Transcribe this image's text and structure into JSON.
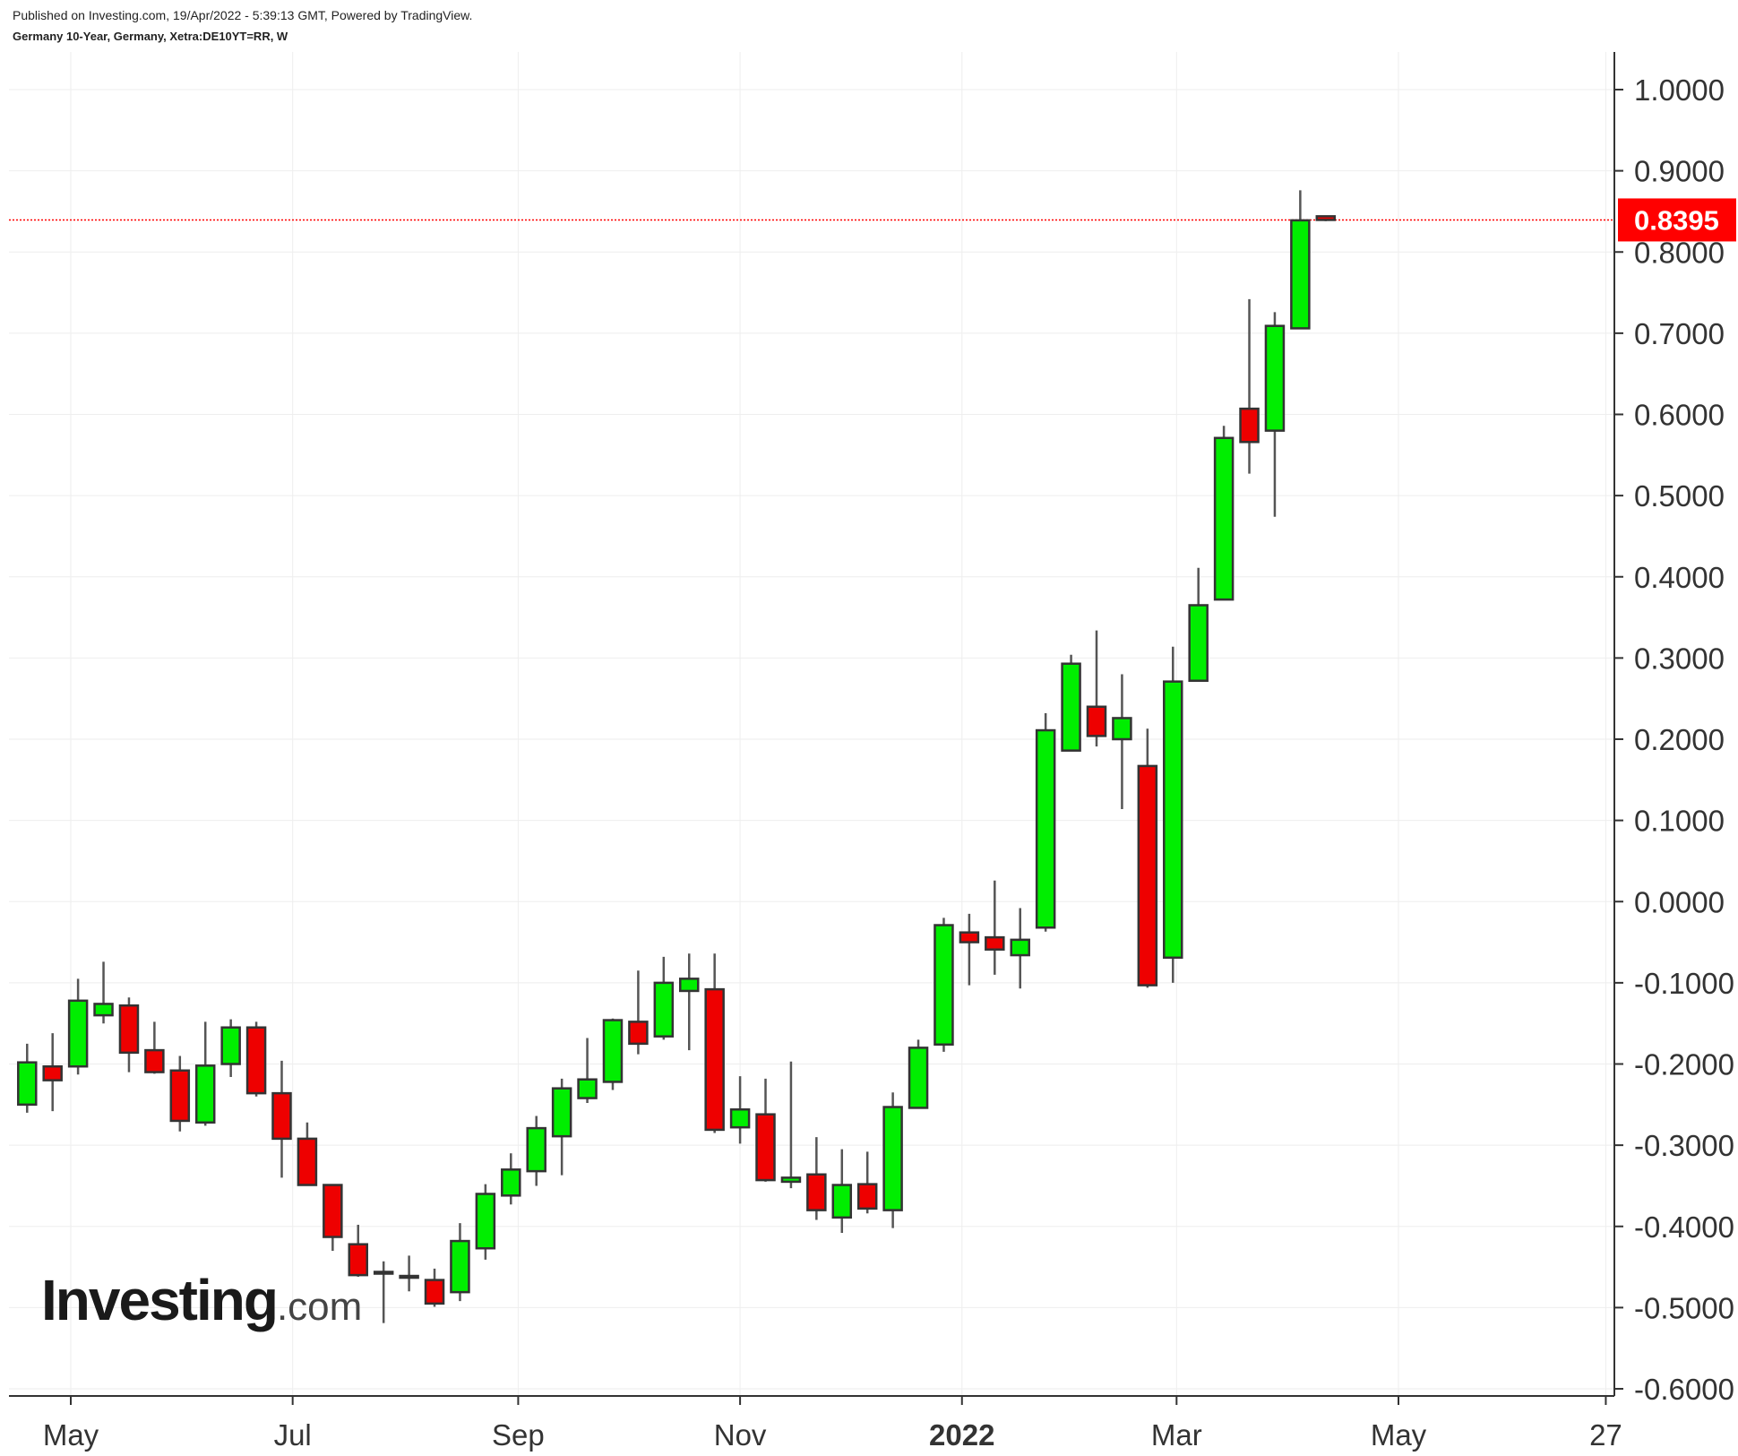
{
  "header": {
    "publish_line": "Published on Investing.com, 19/Apr/2022 - 5:39:13 GMT, Powered by TradingView.",
    "symbol_line": "Germany 10-Year, Germany, Xetra:DE10YT=RR, W"
  },
  "logo": {
    "main": "Investing",
    "suffix": ".com"
  },
  "colors": {
    "up": "#00ee00",
    "down": "#ee0000",
    "border": "#333333",
    "wick": "#555555",
    "grid": "#eeeeee",
    "last_price": "#ff0000"
  },
  "chart_data": {
    "type": "candlestick",
    "title": "Germany 10-Year, Germany, Xetra:DE10YT=RR, W",
    "interval": "weekly",
    "ylim": [
      -0.6,
      1.035
    ],
    "y_ticks": [
      "1.0000",
      "0.9000",
      "0.8000",
      "0.7000",
      "0.6000",
      "0.5000",
      "0.4000",
      "0.3000",
      "0.2000",
      "0.1000",
      "0.0000",
      "-0.1000",
      "-0.2000",
      "-0.3000",
      "-0.4000",
      "-0.5000",
      "-0.6000"
    ],
    "y_tick_values": [
      1.0,
      0.9,
      0.8,
      0.7,
      0.6,
      0.5,
      0.4,
      0.3,
      0.2,
      0.1,
      0.0,
      -0.1,
      -0.2,
      -0.3,
      -0.4,
      -0.5,
      -0.6
    ],
    "x_ticks": [
      {
        "label": "May",
        "date": "2021-05-01",
        "bold": false
      },
      {
        "label": "Jul",
        "date": "2021-07-01",
        "bold": false
      },
      {
        "label": "Sep",
        "date": "2021-09-01",
        "bold": false
      },
      {
        "label": "Nov",
        "date": "2021-11-01",
        "bold": false
      },
      {
        "label": "2022",
        "date": "2022-01-01",
        "bold": true
      },
      {
        "label": "Mar",
        "date": "2022-03-01",
        "bold": false
      },
      {
        "label": "May",
        "date": "2022-05-01",
        "bold": false
      },
      {
        "label": "27",
        "date": "2022-06-27",
        "bold": false
      }
    ],
    "last_price": 0.8395,
    "last_price_label": "0.8395",
    "candles": [
      {
        "date": "2021-04-19",
        "open": -0.25,
        "high": -0.175,
        "low": -0.26,
        "close": -0.198
      },
      {
        "date": "2021-04-26",
        "open": -0.203,
        "high": -0.162,
        "low": -0.258,
        "close": -0.22
      },
      {
        "date": "2021-05-03",
        "open": -0.203,
        "high": -0.095,
        "low": -0.213,
        "close": -0.122
      },
      {
        "date": "2021-05-10",
        "open": -0.14,
        "high": -0.074,
        "low": -0.15,
        "close": -0.126
      },
      {
        "date": "2021-05-17",
        "open": -0.128,
        "high": -0.118,
        "low": -0.21,
        "close": -0.186
      },
      {
        "date": "2021-05-24",
        "open": -0.183,
        "high": -0.148,
        "low": -0.212,
        "close": -0.21
      },
      {
        "date": "2021-05-31",
        "open": -0.208,
        "high": -0.19,
        "low": -0.283,
        "close": -0.27
      },
      {
        "date": "2021-06-07",
        "open": -0.272,
        "high": -0.148,
        "low": -0.276,
        "close": -0.202
      },
      {
        "date": "2021-06-14",
        "open": -0.2,
        "high": -0.145,
        "low": -0.216,
        "close": -0.155
      },
      {
        "date": "2021-06-21",
        "open": -0.155,
        "high": -0.148,
        "low": -0.24,
        "close": -0.236
      },
      {
        "date": "2021-06-28",
        "open": -0.236,
        "high": -0.196,
        "low": -0.34,
        "close": -0.292
      },
      {
        "date": "2021-07-05",
        "open": -0.292,
        "high": -0.272,
        "low": -0.35,
        "close": -0.349
      },
      {
        "date": "2021-07-12",
        "open": -0.349,
        "high": -0.349,
        "low": -0.43,
        "close": -0.413
      },
      {
        "date": "2021-07-19",
        "open": -0.422,
        "high": -0.398,
        "low": -0.462,
        "close": -0.46
      },
      {
        "date": "2021-07-26",
        "open": -0.458,
        "high": -0.443,
        "low": -0.519,
        "close": -0.456
      },
      {
        "date": "2021-08-02",
        "open": -0.463,
        "high": -0.436,
        "low": -0.48,
        "close": -0.461
      },
      {
        "date": "2021-08-09",
        "open": -0.466,
        "high": -0.452,
        "low": -0.499,
        "close": -0.495
      },
      {
        "date": "2021-08-16",
        "open": -0.481,
        "high": -0.396,
        "low": -0.492,
        "close": -0.418
      },
      {
        "date": "2021-08-23",
        "open": -0.427,
        "high": -0.348,
        "low": -0.441,
        "close": -0.36
      },
      {
        "date": "2021-08-30",
        "open": -0.362,
        "high": -0.31,
        "low": -0.373,
        "close": -0.33
      },
      {
        "date": "2021-09-06",
        "open": -0.332,
        "high": -0.264,
        "low": -0.35,
        "close": -0.279
      },
      {
        "date": "2021-09-13",
        "open": -0.289,
        "high": -0.218,
        "low": -0.337,
        "close": -0.23
      },
      {
        "date": "2021-09-20",
        "open": -0.242,
        "high": -0.168,
        "low": -0.248,
        "close": -0.219
      },
      {
        "date": "2021-09-27",
        "open": -0.222,
        "high": -0.144,
        "low": -0.232,
        "close": -0.146
      },
      {
        "date": "2021-10-04",
        "open": -0.148,
        "high": -0.085,
        "low": -0.188,
        "close": -0.175
      },
      {
        "date": "2021-10-11",
        "open": -0.166,
        "high": -0.068,
        "low": -0.17,
        "close": -0.1
      },
      {
        "date": "2021-10-18",
        "open": -0.11,
        "high": -0.064,
        "low": -0.183,
        "close": -0.095
      },
      {
        "date": "2021-10-25",
        "open": -0.108,
        "high": -0.064,
        "low": -0.285,
        "close": -0.281
      },
      {
        "date": "2021-11-01",
        "open": -0.278,
        "high": -0.215,
        "low": -0.298,
        "close": -0.256
      },
      {
        "date": "2021-11-08",
        "open": -0.262,
        "high": -0.218,
        "low": -0.345,
        "close": -0.343
      },
      {
        "date": "2021-11-15",
        "open": -0.345,
        "high": -0.197,
        "low": -0.353,
        "close": -0.34
      },
      {
        "date": "2021-11-22",
        "open": -0.336,
        "high": -0.29,
        "low": -0.392,
        "close": -0.38
      },
      {
        "date": "2021-11-29",
        "open": -0.389,
        "high": -0.305,
        "low": -0.408,
        "close": -0.349
      },
      {
        "date": "2021-12-06",
        "open": -0.348,
        "high": -0.308,
        "low": -0.384,
        "close": -0.378
      },
      {
        "date": "2021-12-13",
        "open": -0.38,
        "high": -0.235,
        "low": -0.402,
        "close": -0.253
      },
      {
        "date": "2021-12-20",
        "open": -0.254,
        "high": -0.17,
        "low": -0.254,
        "close": -0.18
      },
      {
        "date": "2021-12-27",
        "open": -0.176,
        "high": -0.02,
        "low": -0.185,
        "close": -0.029
      },
      {
        "date": "2022-01-03",
        "open": -0.038,
        "high": -0.015,
        "low": -0.103,
        "close": -0.05
      },
      {
        "date": "2022-01-10",
        "open": -0.044,
        "high": 0.026,
        "low": -0.09,
        "close": -0.059
      },
      {
        "date": "2022-01-17",
        "open": -0.066,
        "high": -0.008,
        "low": -0.107,
        "close": -0.047
      },
      {
        "date": "2022-01-24",
        "open": -0.032,
        "high": 0.232,
        "low": -0.037,
        "close": 0.211
      },
      {
        "date": "2022-01-31",
        "open": 0.186,
        "high": 0.304,
        "low": 0.186,
        "close": 0.293
      },
      {
        "date": "2022-02-07",
        "open": 0.24,
        "high": 0.334,
        "low": 0.191,
        "close": 0.204
      },
      {
        "date": "2022-02-14",
        "open": 0.2,
        "high": 0.28,
        "low": 0.114,
        "close": 0.226
      },
      {
        "date": "2022-02-21",
        "open": 0.167,
        "high": 0.213,
        "low": -0.106,
        "close": -0.103
      },
      {
        "date": "2022-02-28",
        "open": -0.069,
        "high": 0.314,
        "low": -0.1,
        "close": 0.271
      },
      {
        "date": "2022-03-07",
        "open": 0.272,
        "high": 0.411,
        "low": 0.272,
        "close": 0.365
      },
      {
        "date": "2022-03-14",
        "open": 0.372,
        "high": 0.586,
        "low": 0.372,
        "close": 0.571
      },
      {
        "date": "2022-03-21",
        "open": 0.607,
        "high": 0.742,
        "low": 0.527,
        "close": 0.566
      },
      {
        "date": "2022-03-28",
        "open": 0.58,
        "high": 0.726,
        "low": 0.474,
        "close": 0.709
      },
      {
        "date": "2022-04-04",
        "open": 0.706,
        "high": 0.876,
        "low": 0.706,
        "close": 0.839
      },
      {
        "date": "2022-04-11",
        "open": 0.844,
        "high": 0.844,
        "low": 0.838,
        "close": 0.8395
      }
    ]
  }
}
